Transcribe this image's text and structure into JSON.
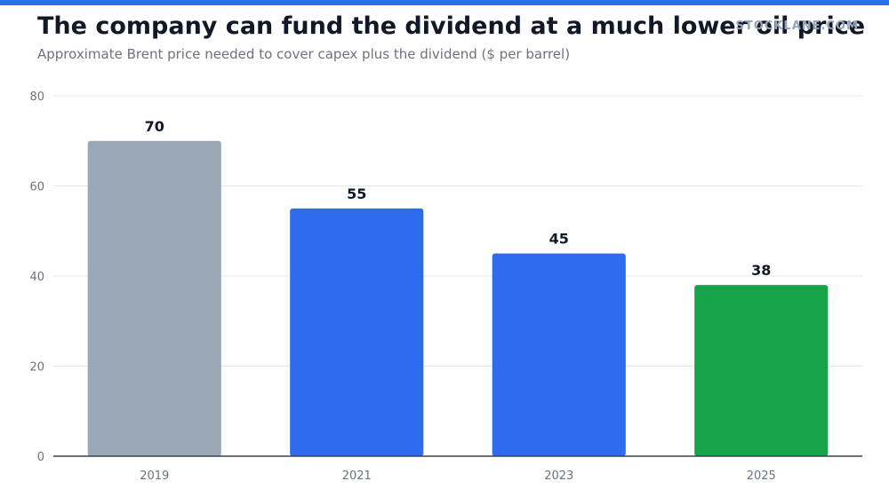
{
  "header": {
    "title": "The company can fund the dividend at a much lower oil price",
    "subtitle": "Approximate Brent price needed to cover capex plus the dividend ($ per barrel)",
    "brand": "STOCKLANE.COM"
  },
  "colors": {
    "accent_bar": "#2f6bef",
    "gray": "#9aa7b7",
    "blue": "#2f6bef",
    "green": "#16a34a",
    "grid": "#e5e7eb",
    "axis": "#374151",
    "tick_text": "#6b7280",
    "label_text": "#111827"
  },
  "chart_data": {
    "type": "bar",
    "title": "The company can fund the dividend at a much lower oil price",
    "subtitle": "Approximate Brent price needed to cover capex plus the dividend ($ per barrel)",
    "xlabel": "",
    "ylabel": "",
    "categories": [
      "2019",
      "2021",
      "2023",
      "2025"
    ],
    "values": [
      70,
      55,
      45,
      38
    ],
    "bar_colors": [
      "#9aa7b7",
      "#2f6bef",
      "#2f6bef",
      "#16a34a"
    ],
    "data_labels": [
      "70",
      "55",
      "45",
      "38"
    ],
    "ylim": [
      0,
      80
    ],
    "yticks": [
      0,
      20,
      40,
      60,
      80
    ],
    "grid": true,
    "legend": "none"
  }
}
